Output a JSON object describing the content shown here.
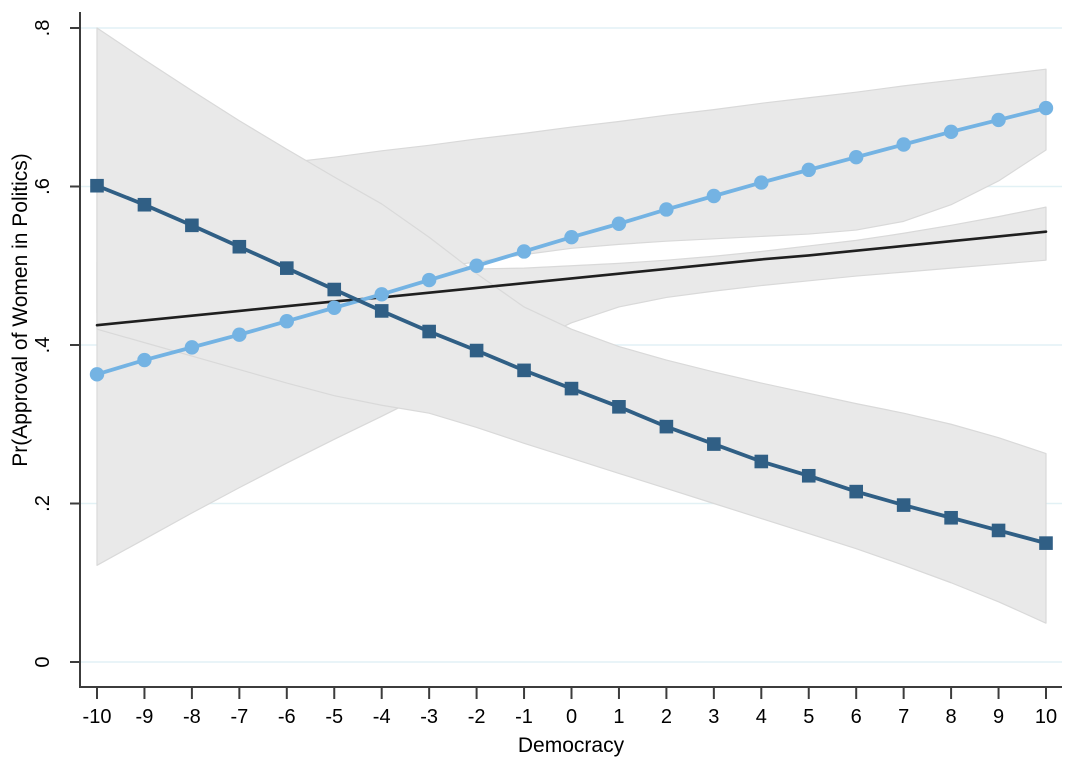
{
  "chart_data": {
    "type": "line",
    "title": "",
    "xlabel": "Democracy",
    "ylabel": "Pr(Approval of Women in Politics)",
    "xlim": [
      -10.2,
      10.35
    ],
    "ylim": [
      0,
      0.82
    ],
    "grid": "horizontal gridlines, pale blue, at y ticks",
    "legend_position": "none",
    "x_ticks": [
      {
        "value": -10,
        "label": "-10"
      },
      {
        "value": -9,
        "label": "-9"
      },
      {
        "value": -8,
        "label": "-8"
      },
      {
        "value": -7,
        "label": "-7"
      },
      {
        "value": -6,
        "label": "-6"
      },
      {
        "value": -5,
        "label": "-5"
      },
      {
        "value": -4,
        "label": "-4"
      },
      {
        "value": -3,
        "label": "-3"
      },
      {
        "value": -2,
        "label": "-2"
      },
      {
        "value": -1,
        "label": "-1"
      },
      {
        "value": 0,
        "label": "0"
      },
      {
        "value": 1,
        "label": "1"
      },
      {
        "value": 2,
        "label": "2"
      },
      {
        "value": 3,
        "label": "3"
      },
      {
        "value": 4,
        "label": "4"
      },
      {
        "value": 5,
        "label": "5"
      },
      {
        "value": 6,
        "label": "6"
      },
      {
        "value": 7,
        "label": "7"
      },
      {
        "value": 8,
        "label": "8"
      },
      {
        "value": 9,
        "label": "9"
      },
      {
        "value": 10,
        "label": "10"
      }
    ],
    "y_ticks": [
      {
        "value": 0,
        "label": "0"
      },
      {
        "value": 0.2,
        "label": ".2"
      },
      {
        "value": 0.4,
        "label": ".4"
      },
      {
        "value": 0.6,
        "label": ".6"
      },
      {
        "value": 0.8,
        "label": ".8"
      }
    ],
    "x": [
      -10,
      -9,
      -8,
      -7,
      -6,
      -5,
      -4,
      -3,
      -2,
      -1,
      0,
      1,
      2,
      3,
      4,
      5,
      6,
      7,
      8,
      9,
      10
    ],
    "band_fill_color": "#e9e9e9",
    "band_edge_color": "#d9d9d9",
    "gridline_color": "#e2f1f5",
    "axis_color": "#3c3c3c",
    "series": [
      {
        "name": "solid-flat-line",
        "marker": "none",
        "color": "#1f1f1f",
        "line_width": 2.6,
        "values": [
          0.425,
          0.431,
          0.437,
          0.443,
          0.449,
          0.455,
          0.46,
          0.466,
          0.472,
          0.478,
          0.484,
          0.49,
          0.496,
          0.502,
          0.508,
          0.513,
          0.519,
          0.525,
          0.531,
          0.537,
          0.543
        ],
        "band_lower": [
          0.122,
          0.155,
          0.188,
          0.22,
          0.251,
          0.281,
          0.31,
          0.34,
          0.37,
          0.4,
          0.428,
          0.448,
          0.46,
          0.468,
          0.475,
          0.481,
          0.487,
          0.492,
          0.497,
          0.502,
          0.507
        ],
        "band_upper": [
          0.505,
          0.503,
          0.501,
          0.499,
          0.497,
          0.496,
          0.496,
          0.496,
          0.496,
          0.497,
          0.5,
          0.503,
          0.507,
          0.512,
          0.518,
          0.525,
          0.532,
          0.541,
          0.551,
          0.562,
          0.574
        ]
      },
      {
        "name": "increasing-line-circle-markers",
        "marker": "circle",
        "color": "#74b3e3",
        "line_width": 3.8,
        "values": [
          0.363,
          0.381,
          0.397,
          0.413,
          0.43,
          0.447,
          0.464,
          0.482,
          0.5,
          0.518,
          0.536,
          0.553,
          0.571,
          0.588,
          0.605,
          0.621,
          0.637,
          0.653,
          0.669,
          0.684,
          0.699
        ],
        "band_lower": [
          0.44,
          0.448,
          0.455,
          0.462,
          0.47,
          0.478,
          0.487,
          0.496,
          0.505,
          0.514,
          0.522,
          0.527,
          0.531,
          0.534,
          0.537,
          0.54,
          0.545,
          0.556,
          0.577,
          0.607,
          0.646
        ],
        "band_upper": [
          0.6,
          0.607,
          0.615,
          0.622,
          0.63,
          0.637,
          0.645,
          0.652,
          0.66,
          0.667,
          0.675,
          0.682,
          0.69,
          0.697,
          0.705,
          0.712,
          0.719,
          0.727,
          0.734,
          0.741,
          0.748
        ]
      },
      {
        "name": "decreasing-line-square-markers",
        "marker": "square",
        "color": "#305f85",
        "line_width": 3.8,
        "values": [
          0.601,
          0.577,
          0.551,
          0.524,
          0.497,
          0.47,
          0.443,
          0.417,
          0.393,
          0.368,
          0.345,
          0.322,
          0.297,
          0.275,
          0.253,
          0.235,
          0.215,
          0.198,
          0.182,
          0.166,
          0.15
        ],
        "band_lower": [
          0.42,
          0.403,
          0.386,
          0.369,
          0.352,
          0.336,
          0.324,
          0.314,
          0.296,
          0.276,
          0.257,
          0.238,
          0.219,
          0.2,
          0.181,
          0.162,
          0.143,
          0.122,
          0.1,
          0.076,
          0.049
        ],
        "band_upper": [
          0.8,
          0.76,
          0.721,
          0.683,
          0.647,
          0.612,
          0.578,
          0.536,
          0.49,
          0.448,
          0.42,
          0.398,
          0.381,
          0.366,
          0.352,
          0.339,
          0.326,
          0.314,
          0.3,
          0.283,
          0.263
        ]
      }
    ]
  }
}
